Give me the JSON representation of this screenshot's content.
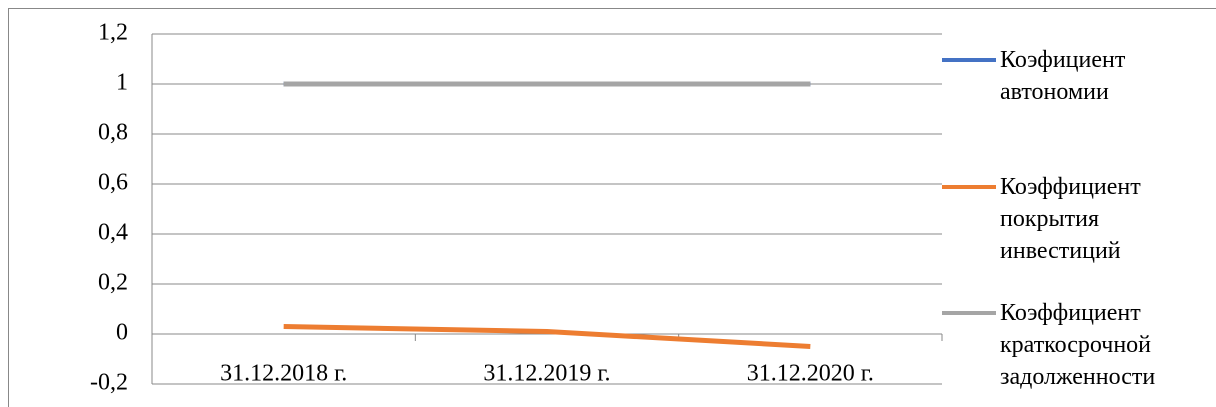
{
  "chart_data": {
    "type": "line",
    "categories": [
      "31.12.2018 г.",
      "31.12.2019 г.",
      "31.12.2020 г."
    ],
    "series": [
      {
        "name": "Коэфициент автономии",
        "color": "#4472c4",
        "values": [
          1,
          1,
          1
        ]
      },
      {
        "name": "Коэффициент покрытия инвестиций",
        "color": "#ed7d31",
        "values": [
          0.03,
          0.01,
          -0.05
        ]
      },
      {
        "name": "Коэффициент краткосрочной задолженности",
        "color": "#a5a5a5",
        "values": [
          1,
          1,
          1
        ]
      }
    ],
    "ylim": [
      -0.2,
      1.2
    ],
    "yticks": [
      {
        "value": -0.2,
        "label": "-0,2"
      },
      0,
      {
        "value": 0.2,
        "label": "0,2"
      },
      {
        "value": 0.4,
        "label": "0,4"
      },
      {
        "value": 0.6,
        "label": "0,6"
      },
      {
        "value": 0.8,
        "label": "0,8"
      },
      1,
      {
        "value": 1.2,
        "label": "1,2"
      }
    ],
    "grid": true,
    "legend": "right"
  }
}
